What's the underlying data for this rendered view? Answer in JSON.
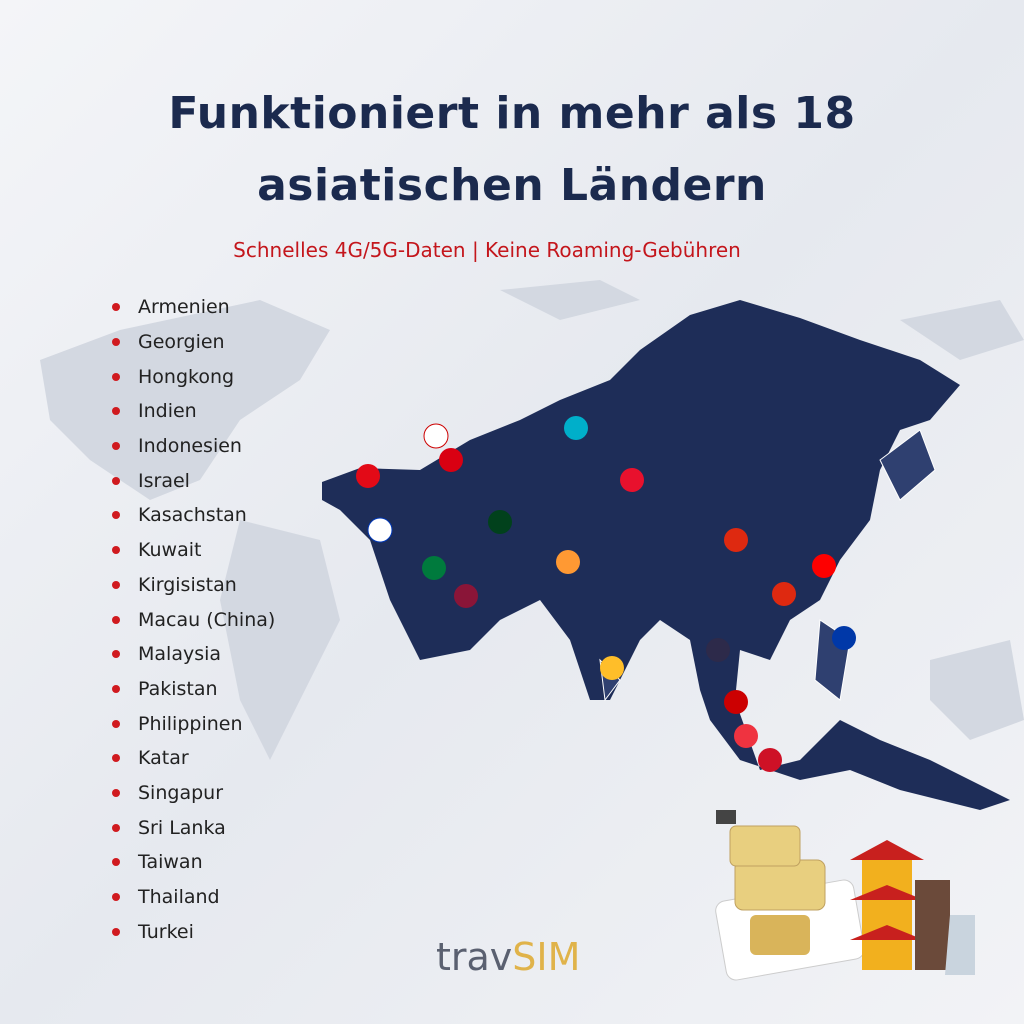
{
  "header": {
    "title_lines": [
      "Funktioniert in mehr als 18",
      "asiatischen Ländern"
    ],
    "subtitle": "Schnelles 4G/5G-Daten | Keine Roaming-Gebühren"
  },
  "countries": [
    "Armenien",
    "Georgien",
    "Hongkong",
    "Indien",
    "Indonesien",
    "Israel",
    "Kasachstan",
    "Kuwait",
    "Kirgisistan",
    "Macau (China)",
    "Malaysia",
    "Pakistan",
    "Philippinen",
    "Katar",
    "Singapur",
    "Sri Lanka",
    "Taiwan",
    "Thailand",
    "Turkei"
  ],
  "brand": {
    "prefix": "trav",
    "suffix": "SIM"
  }
}
